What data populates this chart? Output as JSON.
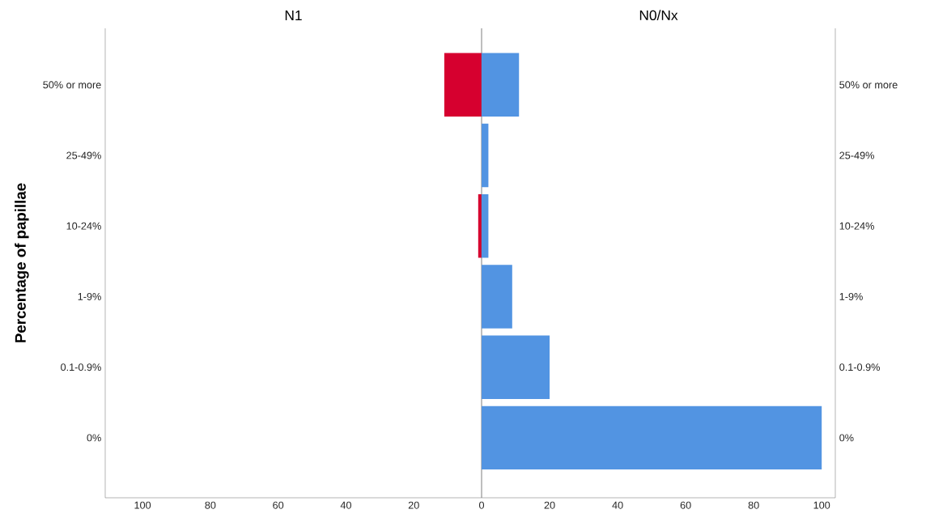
{
  "chart_data": [
    {
      "type": "bar",
      "orientation": "horizontal",
      "title": "N1",
      "ylabel": "Percentage of papillae",
      "categories": [
        "50% or more",
        "25-49%",
        "10-24%",
        "1-9%",
        "0.1-0.9%",
        "0%"
      ],
      "values": [
        11,
        0,
        1,
        0,
        0,
        0
      ],
      "color": "#d6002f",
      "xlim": [
        111,
        0
      ],
      "xticks": [
        100,
        80,
        60,
        40,
        20
      ]
    },
    {
      "type": "bar",
      "orientation": "horizontal",
      "title": "N0/Nx",
      "categories": [
        "50% or more",
        "25-49%",
        "10-24%",
        "1-9%",
        "0.1-0.9%",
        "0%"
      ],
      "values": [
        11,
        2,
        2,
        9,
        20,
        100
      ],
      "color": "#5294e2",
      "xlim": [
        0,
        104
      ],
      "xticks": [
        0,
        20,
        40,
        60,
        80,
        100
      ]
    }
  ]
}
